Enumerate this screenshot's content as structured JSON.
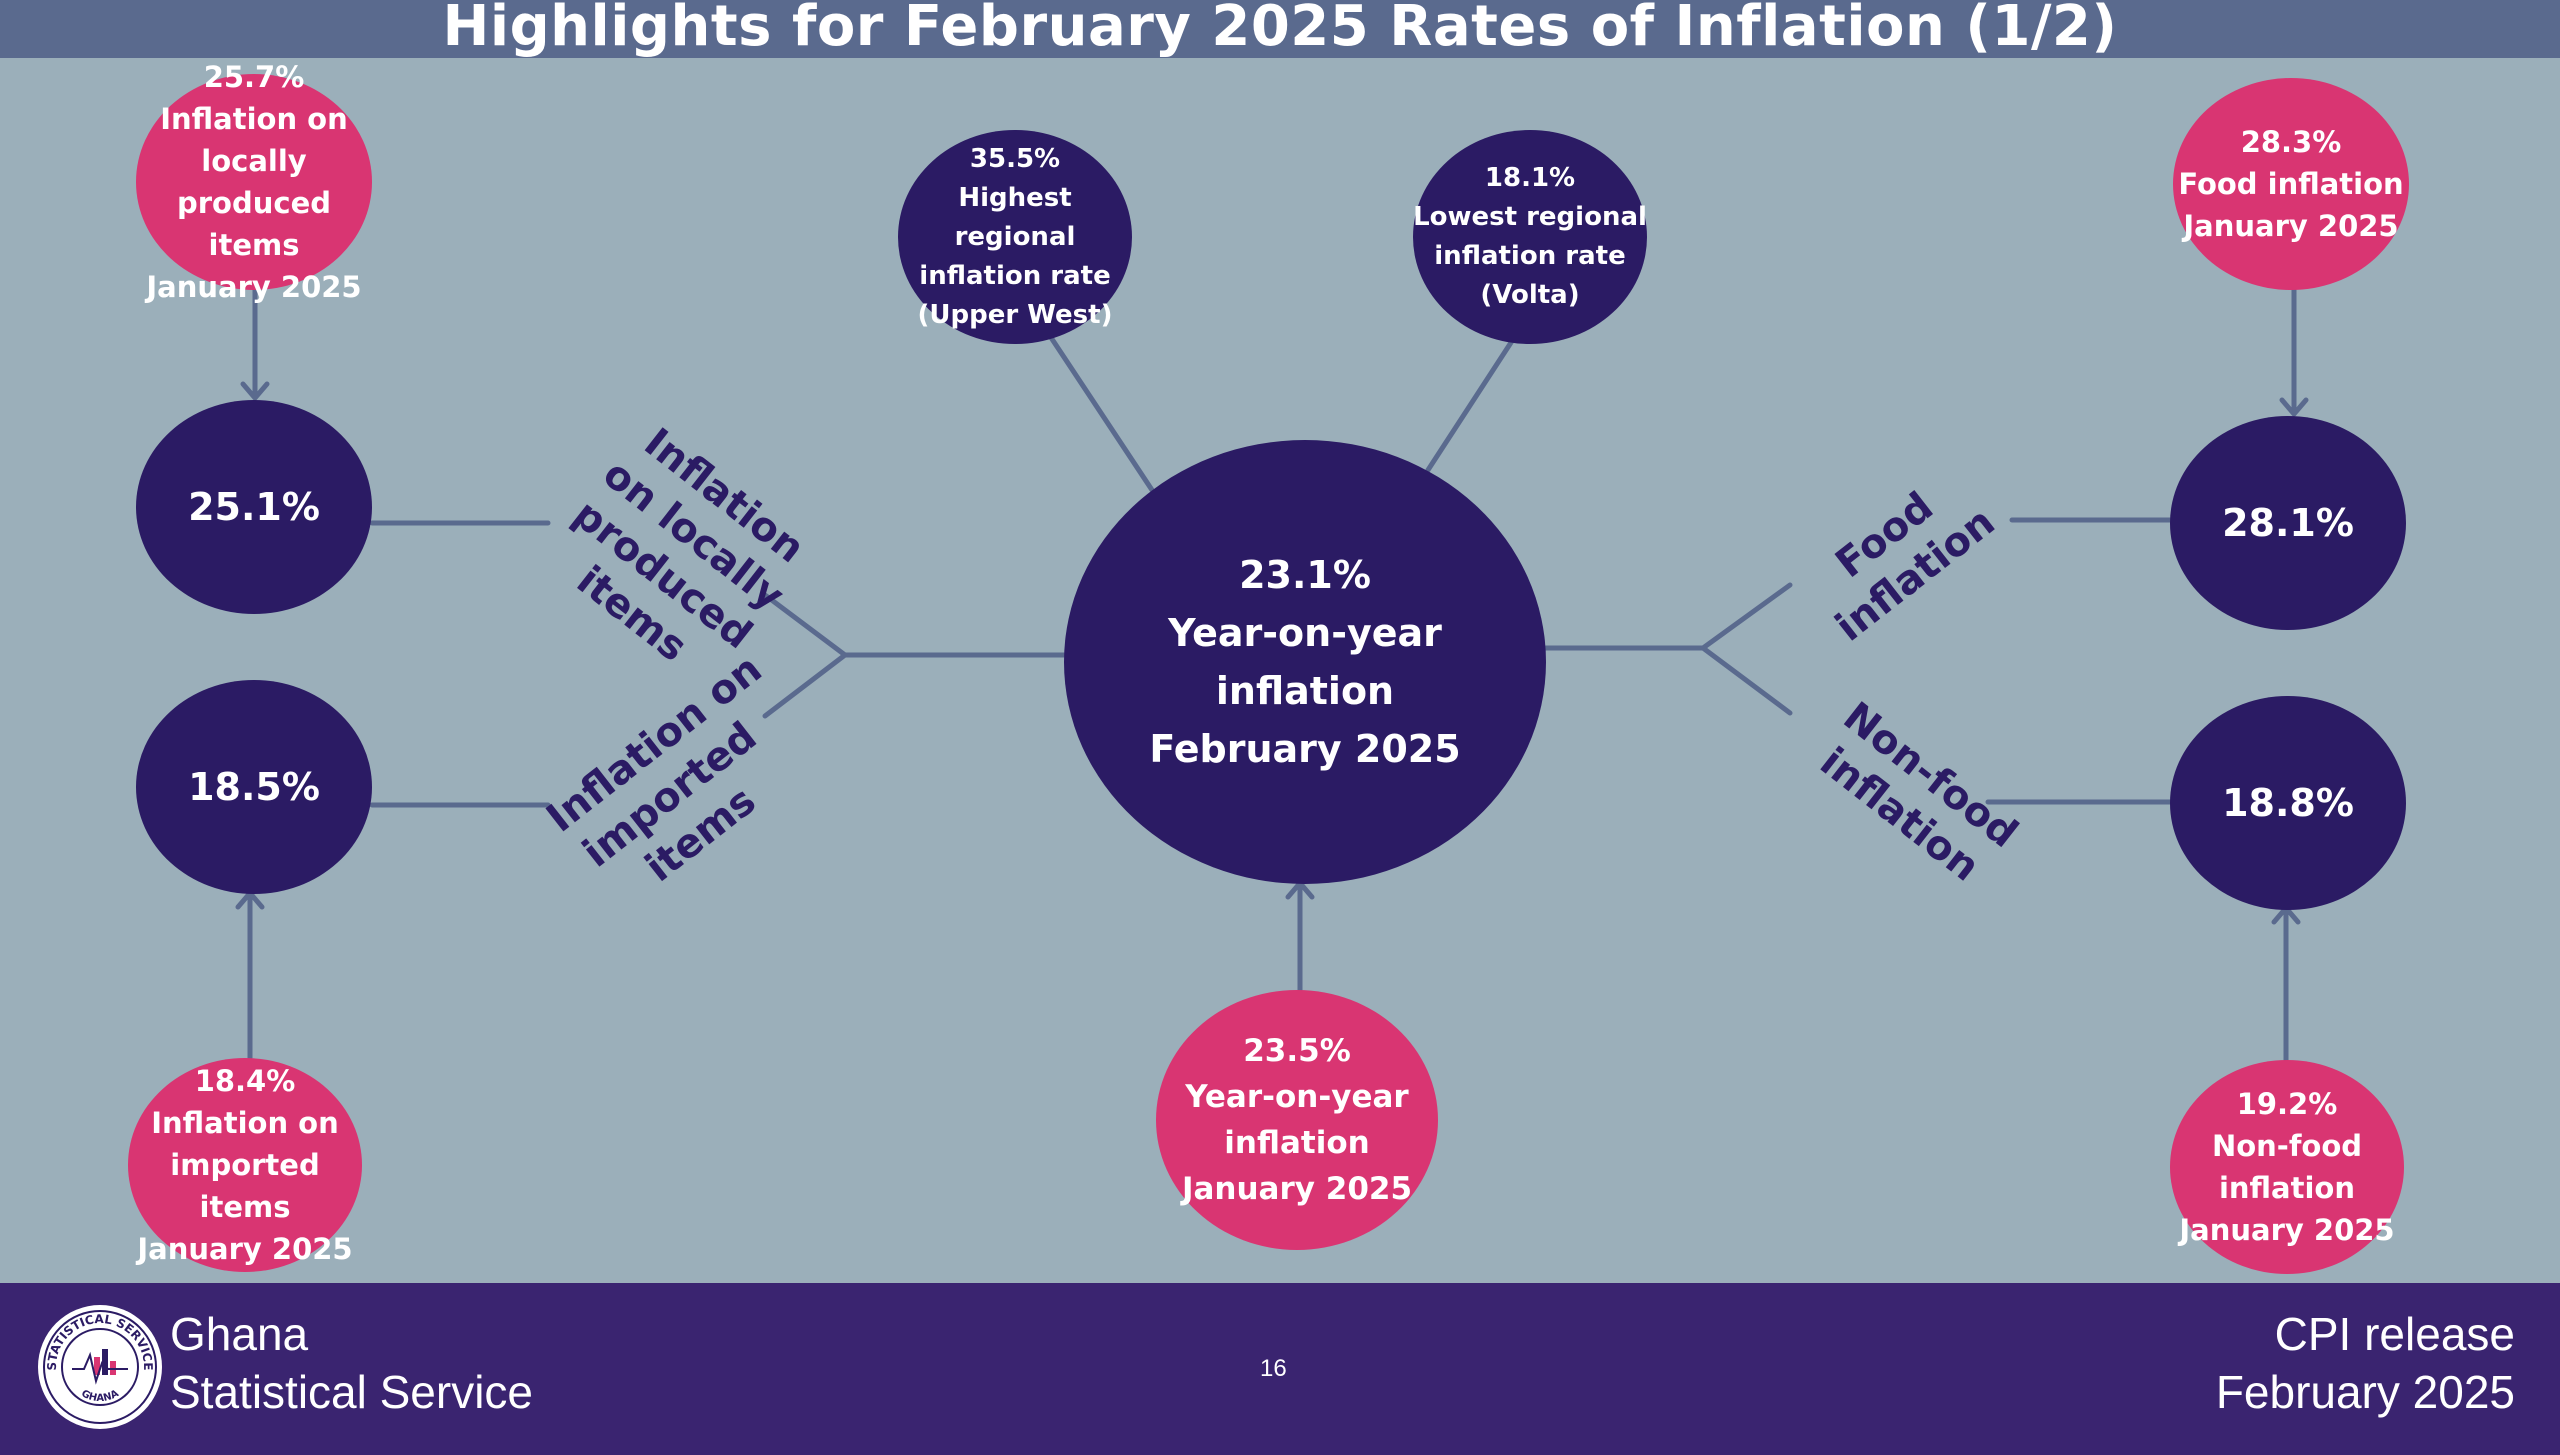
{
  "title": "Highlights for February 2025 Rates of Inflation (1/2)",
  "center": {
    "lines": [
      "23.1%",
      "Year-on-year",
      "inflation",
      "February 2025"
    ]
  },
  "top_regional": {
    "highest": [
      "35.5%",
      "Highest regional",
      "inflation rate",
      "(Upper West)"
    ],
    "lowest": [
      "18.1%",
      "Lowest regional",
      "inflation rate",
      "(Volta)"
    ]
  },
  "left": {
    "local_current": "25.1%",
    "local_previous": [
      "25.7%",
      "Inflation on locally",
      "produced items",
      "January 2025"
    ],
    "local_label": [
      "Inflation",
      "on locally",
      "produced",
      "items"
    ],
    "imported_current": "18.5%",
    "imported_previous": [
      "18.4%",
      "Inflation on",
      "imported items",
      "January 2025"
    ],
    "imported_label": [
      "Inflation on",
      "imported",
      "items"
    ]
  },
  "right": {
    "food_current": "28.1%",
    "food_previous": [
      "28.3%",
      "Food inflation",
      "January 2025"
    ],
    "food_label": [
      "Food",
      "inflation"
    ],
    "nonfood_current": "18.8%",
    "nonfood_previous": [
      "19.2%",
      "Non-food",
      "inflation",
      "January 2025"
    ],
    "nonfood_label": [
      "Non-food",
      "inflation"
    ]
  },
  "bottom_center": [
    "23.5%",
    "Year-on-year",
    "inflation",
    "January 2025"
  ],
  "footer": {
    "org": [
      "Ghana",
      "Statistical Service"
    ],
    "page": "16",
    "release": [
      "CPI release",
      "February  2025"
    ],
    "logo_ring_text": "STATISTICAL SERVICE",
    "logo_bottom_text": "GHANA"
  },
  "colors": {
    "background": "#9bafba",
    "navy": "#2b1b64",
    "pink": "#d93572",
    "connector": "#5a6a8e",
    "footer": "#3a2470"
  }
}
